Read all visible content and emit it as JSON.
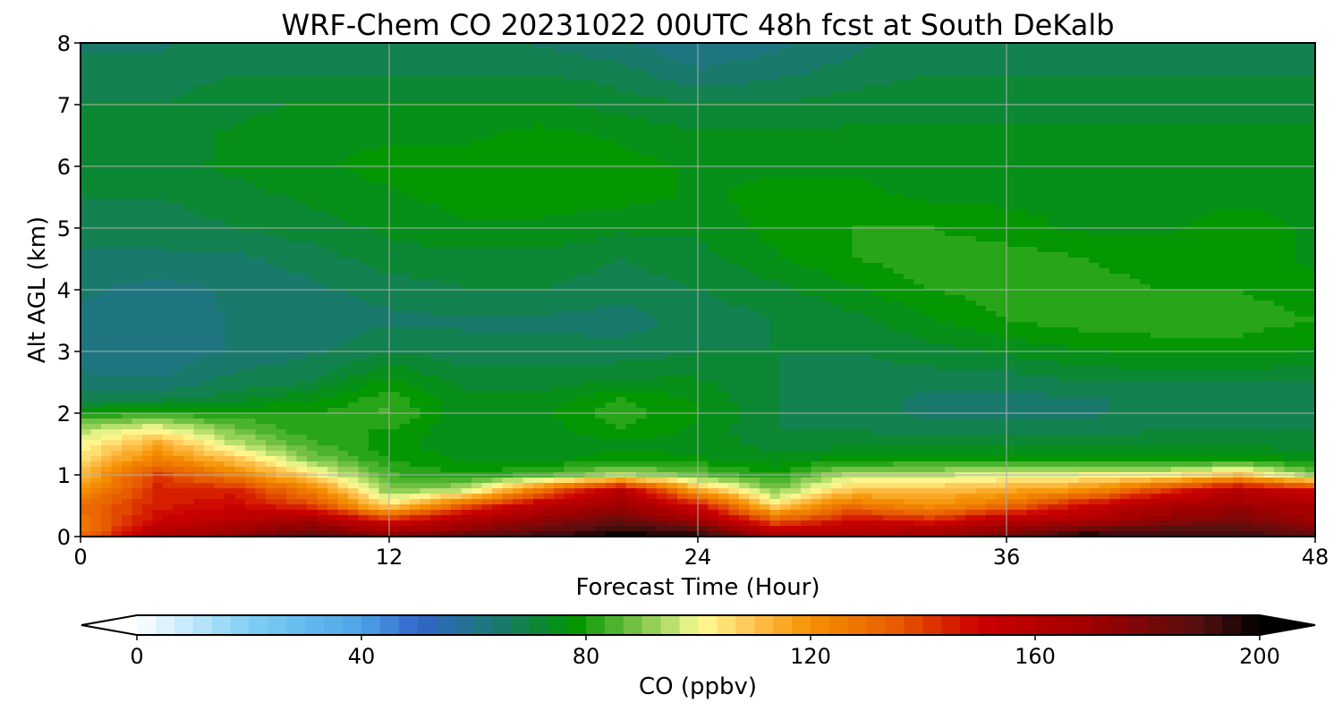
{
  "chart_data": {
    "type": "heatmap",
    "title": "WRF-Chem CO  20231022 00UTC 48h fcst at South DeKalb",
    "xlabel": "Forecast Time (Hour)",
    "ylabel": "Alt AGL (km)",
    "xlim": [
      0,
      48
    ],
    "ylim": [
      0,
      8
    ],
    "x_ticks": [
      0,
      12,
      24,
      36,
      48
    ],
    "y_ticks": [
      0,
      1,
      2,
      3,
      4,
      5,
      6,
      7,
      8
    ],
    "grid": true,
    "x": [
      0,
      3,
      6,
      9,
      12,
      15,
      18,
      21,
      24,
      27,
      30,
      33,
      36,
      39,
      42,
      45,
      48
    ],
    "y": [
      0,
      0.1,
      0.25,
      0.5,
      0.75,
      1.0,
      1.25,
      1.5,
      1.75,
      2.0,
      2.25,
      2.5,
      3.0,
      3.5,
      4.0,
      4.5,
      5.0,
      5.5,
      6.0,
      6.5,
      7.0,
      7.5,
      8.0
    ],
    "z": [
      [
        130,
        165,
        175,
        190,
        180,
        190,
        195,
        200,
        198,
        170,
        170,
        170,
        185,
        200,
        195,
        195,
        190
      ],
      [
        125,
        160,
        170,
        180,
        165,
        175,
        185,
        195,
        190,
        155,
        160,
        165,
        175,
        185,
        190,
        190,
        180
      ],
      [
        128,
        150,
        160,
        170,
        145,
        165,
        175,
        185,
        170,
        135,
        150,
        145,
        160,
        165,
        175,
        180,
        170
      ],
      [
        130,
        145,
        150,
        140,
        105,
        135,
        160,
        170,
        150,
        105,
        130,
        120,
        130,
        150,
        165,
        170,
        165
      ],
      [
        120,
        145,
        145,
        125,
        90,
        95,
        130,
        160,
        115,
        90,
        110,
        110,
        115,
        120,
        140,
        160,
        150
      ],
      [
        110,
        140,
        125,
        105,
        84,
        80,
        85,
        95,
        88,
        80,
        95,
        96,
        98,
        100,
        100,
        110,
        90
      ],
      [
        105,
        125,
        110,
        90,
        80,
        76,
        76,
        78,
        77,
        75,
        78,
        78,
        78,
        78,
        78,
        78,
        76
      ],
      [
        100,
        115,
        95,
        84,
        78,
        74,
        74,
        76,
        75,
        72,
        72,
        72,
        72,
        72,
        72,
        72,
        72
      ],
      [
        94,
        100,
        88,
        80,
        80,
        74,
        75,
        80,
        76,
        70,
        70,
        68,
        68,
        68,
        70,
        70,
        70
      ],
      [
        78,
        82,
        80,
        80,
        84,
        74,
        76,
        82,
        77,
        70,
        68,
        66,
        66,
        66,
        68,
        68,
        68
      ],
      [
        68,
        68,
        72,
        76,
        82,
        74,
        74,
        80,
        76,
        70,
        68,
        66,
        66,
        66,
        68,
        68,
        68
      ],
      [
        64,
        64,
        68,
        70,
        78,
        72,
        72,
        74,
        74,
        70,
        68,
        68,
        68,
        70,
        70,
        70,
        70
      ],
      [
        62,
        60,
        64,
        66,
        70,
        68,
        68,
        68,
        70,
        70,
        70,
        72,
        74,
        76,
        78,
        78,
        76
      ],
      [
        62,
        60,
        64,
        64,
        66,
        66,
        66,
        65,
        68,
        70,
        72,
        76,
        80,
        82,
        82,
        82,
        80
      ],
      [
        64,
        62,
        64,
        66,
        68,
        70,
        70,
        68,
        70,
        72,
        76,
        80,
        82,
        82,
        80,
        80,
        78
      ],
      [
        66,
        66,
        66,
        68,
        72,
        72,
        72,
        70,
        72,
        76,
        80,
        82,
        82,
        80,
        78,
        78,
        76
      ],
      [
        68,
        68,
        70,
        72,
        74,
        76,
        76,
        74,
        74,
        78,
        80,
        80,
        78,
        76,
        76,
        78,
        76
      ],
      [
        70,
        70,
        72,
        74,
        76,
        78,
        78,
        78,
        76,
        78,
        78,
        76,
        76,
        76,
        76,
        76,
        76
      ],
      [
        70,
        72,
        74,
        76,
        78,
        78,
        80,
        78,
        76,
        76,
        76,
        74,
        74,
        74,
        74,
        74,
        74
      ],
      [
        72,
        72,
        74,
        76,
        76,
        76,
        78,
        76,
        74,
        74,
        74,
        74,
        74,
        74,
        74,
        74,
        74
      ],
      [
        70,
        70,
        72,
        74,
        74,
        74,
        74,
        72,
        70,
        70,
        72,
        72,
        72,
        72,
        72,
        72,
        72
      ],
      [
        68,
        68,
        70,
        70,
        70,
        70,
        70,
        68,
        64,
        66,
        68,
        70,
        70,
        70,
        70,
        70,
        70
      ],
      [
        66,
        66,
        68,
        68,
        68,
        68,
        66,
        64,
        60,
        62,
        66,
        68,
        68,
        68,
        68,
        68,
        68
      ]
    ],
    "colorbar": {
      "label": "CO  (ppbv)",
      "min": 0,
      "max": 200,
      "ticks": [
        0,
        40,
        80,
        120,
        160,
        200
      ],
      "extend": "both",
      "levels": 60,
      "stops": [
        {
          "v": 0,
          "c": "#ffffff"
        },
        {
          "v": 20,
          "c": "#7fcff5"
        },
        {
          "v": 40,
          "c": "#4da3e6"
        },
        {
          "v": 50,
          "c": "#3366cc"
        },
        {
          "v": 65,
          "c": "#197a6b"
        },
        {
          "v": 78,
          "c": "#009600"
        },
        {
          "v": 88,
          "c": "#6cc041"
        },
        {
          "v": 97,
          "c": "#cfe87a"
        },
        {
          "v": 100,
          "c": "#ffff99"
        },
        {
          "v": 110,
          "c": "#ffc14d"
        },
        {
          "v": 120,
          "c": "#f59100"
        },
        {
          "v": 135,
          "c": "#e85c00"
        },
        {
          "v": 150,
          "c": "#cc0000"
        },
        {
          "v": 170,
          "c": "#a00000"
        },
        {
          "v": 190,
          "c": "#501010"
        },
        {
          "v": 200,
          "c": "#000000"
        }
      ]
    }
  }
}
